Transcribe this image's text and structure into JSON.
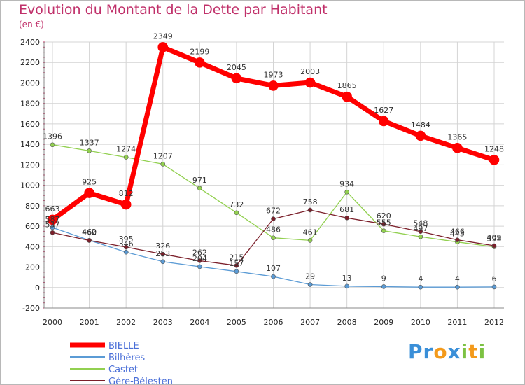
{
  "chart_data": {
    "type": "line",
    "title": "Evolution du Montant de la Dette par Habitant",
    "subtitle": "(en €)",
    "xlabel": "",
    "ylabel": "",
    "x": [
      "2000",
      "2001",
      "2002",
      "2003",
      "2004",
      "2005",
      "2006",
      "2007",
      "2008",
      "2009",
      "2010",
      "2011",
      "2012"
    ],
    "ylim": [
      -200,
      2400
    ],
    "yticks": [
      -200,
      0,
      200,
      400,
      600,
      800,
      1000,
      1200,
      1400,
      1600,
      1800,
      2000,
      2200,
      2400
    ],
    "grid": true,
    "legend_position": "bottom-left",
    "series": [
      {
        "name": "BIELLE",
        "color": "#ff0000",
        "values": [
          663,
          925,
          812,
          2349,
          2199,
          2045,
          1973,
          2003,
          1865,
          1627,
          1484,
          1365,
          1248
        ]
      },
      {
        "name": "Bilhères",
        "color": "#5b9bd5",
        "values": [
          587,
          462,
          346,
          253,
          204,
          157,
          107,
          29,
          13,
          9,
          4,
          4,
          6
        ]
      },
      {
        "name": "Castet",
        "color": "#92d050",
        "values": [
          1396,
          1337,
          1274,
          1207,
          971,
          732,
          486,
          461,
          934,
          555,
          497,
          445,
          398
        ]
      },
      {
        "name": "Gère-Bélesten",
        "color": "#7b1f2a",
        "values": [
          537,
          460,
          395,
          326,
          262,
          215,
          672,
          758,
          681,
          620,
          548,
          466,
          409
        ]
      }
    ]
  },
  "logo": {
    "parts": [
      "Pr",
      "o",
      "x",
      "i",
      "t",
      "i"
    ]
  }
}
